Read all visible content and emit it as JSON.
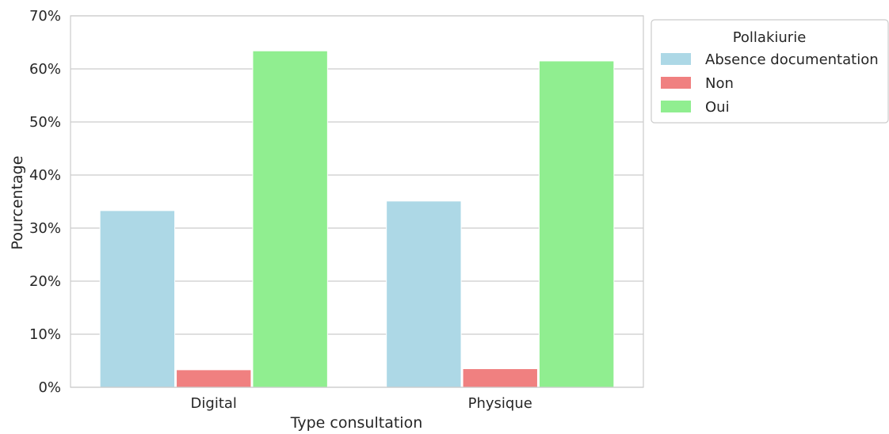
{
  "chart_data": {
    "type": "bar",
    "title": "",
    "xlabel": "Type consultation",
    "ylabel": "Pourcentage",
    "categories": [
      "Digital",
      "Physique"
    ],
    "ylim": [
      0,
      70
    ],
    "yticks": [
      0,
      10,
      20,
      30,
      40,
      50,
      60,
      70
    ],
    "ytick_labels": [
      "0%",
      "10%",
      "20%",
      "30%",
      "40%",
      "50%",
      "60%",
      "70%"
    ],
    "grid": true,
    "legend": {
      "title": "Pollakiurie",
      "placement": "outside-top-right"
    },
    "series": [
      {
        "name": "Absence documentation",
        "color": "#add8e6",
        "values": [
          33.3,
          35.1
        ]
      },
      {
        "name": "Non",
        "color": "#f08080",
        "values": [
          3.3,
          3.5
        ]
      },
      {
        "name": "Oui",
        "color": "#90ee90",
        "values": [
          63.4,
          61.5
        ]
      }
    ]
  }
}
